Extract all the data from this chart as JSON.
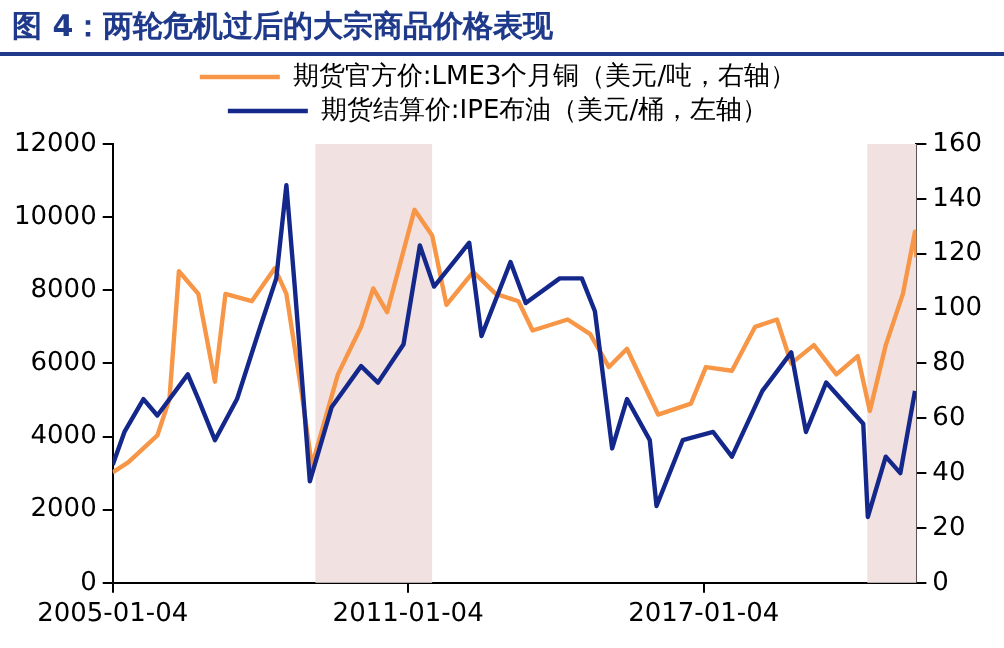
{
  "chart_data": {
    "type": "line",
    "title": "图 4：两轮危机过后的大宗商品价格表现",
    "xlim": [
      "2005-01-04",
      "2021-04-30"
    ],
    "xticks": [
      "2005-01-04",
      "2011-01-04",
      "2017-01-04"
    ],
    "ylim": [
      0,
      12000
    ],
    "yticks": [
      0,
      2000,
      4000,
      6000,
      8000,
      10000,
      12000
    ],
    "y2lim": [
      0,
      160
    ],
    "y2ticks": [
      0,
      20,
      40,
      60,
      80,
      100,
      120,
      140,
      160
    ],
    "grid": false,
    "legend": "top",
    "marker": "none",
    "line_style": "solid",
    "bands": [
      {
        "axis": "x",
        "from": "2009-02-15",
        "to": "2011-07-01",
        "color": "#f2e1e1"
      },
      {
        "axis": "x",
        "from": "2020-05-01",
        "to": "2021-04-30",
        "color": "#f2e1e1"
      }
    ],
    "series": [
      {
        "name": "期货官方价:LME3个月铜（美元/吨，右轴）",
        "color": "#f79646",
        "x": [
          "2005-01-04",
          "2005-05-01",
          "2005-12-01",
          "2006-03-01",
          "2006-05-10",
          "2006-10-01",
          "2007-02-01",
          "2007-04-20",
          "2007-11-01",
          "2008-04-20",
          "2008-07-15",
          "2008-11-05",
          "2009-01-20",
          "2009-08-01",
          "2010-01-20",
          "2010-04-20",
          "2010-08-01",
          "2011-02-20",
          "2011-07-01",
          "2011-10-15",
          "2012-05-01",
          "2012-10-15",
          "2013-04-01",
          "2013-07-15",
          "2014-04-01",
          "2014-09-15",
          "2015-02-01",
          "2015-06-15",
          "2016-02-01",
          "2016-10-01",
          "2017-01-20",
          "2017-08-01",
          "2018-01-20",
          "2018-07-01",
          "2018-10-15",
          "2019-04-01",
          "2019-09-15",
          "2020-02-20",
          "2020-05-20",
          "2020-09-15",
          "2021-01-20",
          "2021-04-20",
          "2021-04-30"
        ],
        "values": [
          3020,
          3300,
          4030,
          5030,
          8520,
          7900,
          5500,
          7900,
          7700,
          8600,
          7900,
          5200,
          3200,
          5700,
          7000,
          8050,
          7400,
          10200,
          9500,
          7600,
          8500,
          7900,
          7700,
          6900,
          7200,
          6800,
          5900,
          6400,
          4600,
          4900,
          5900,
          5800,
          7000,
          7200,
          6000,
          6500,
          5700,
          6200,
          4700,
          6500,
          7900,
          9600,
          8900
        ]
      },
      {
        "name": "期货结算价:IPE布油（美元/桶，左轴）",
        "color": "#14288c",
        "axis": "y2",
        "x": [
          "2005-01-04",
          "2005-04-01",
          "2005-08-20",
          "2005-12-01",
          "2006-07-15",
          "2006-10-01",
          "2007-02-01",
          "2007-07-15",
          "2008-01-01",
          "2008-05-01",
          "2008-07-15",
          "2008-09-15",
          "2008-11-05",
          "2009-01-05",
          "2009-06-15",
          "2010-01-20",
          "2010-05-25",
          "2010-12-01",
          "2011-04-01",
          "2011-07-15",
          "2012-04-01",
          "2012-07-01",
          "2013-02-01",
          "2013-05-25",
          "2014-02-01",
          "2014-07-15",
          "2014-10-20",
          "2015-02-25",
          "2015-06-15",
          "2015-12-01",
          "2016-01-20",
          "2016-08-01",
          "2017-03-15",
          "2017-08-01",
          "2018-03-15",
          "2018-10-15",
          "2019-02-01",
          "2019-07-01",
          "2020-04-01",
          "2020-05-05",
          "2020-09-15",
          "2021-01-01",
          "2021-04-20"
        ],
        "values": [
          43,
          55,
          67,
          61,
          76,
          67,
          52,
          67,
          93,
          111,
          145,
          108,
          76,
          37,
          64,
          79,
          73,
          87,
          123,
          108,
          124,
          90,
          117,
          102,
          111,
          111,
          99,
          49,
          67,
          52,
          28,
          52,
          55,
          46,
          70,
          84,
          55,
          73,
          58,
          24,
          46,
          40,
          70
        ]
      }
    ]
  }
}
